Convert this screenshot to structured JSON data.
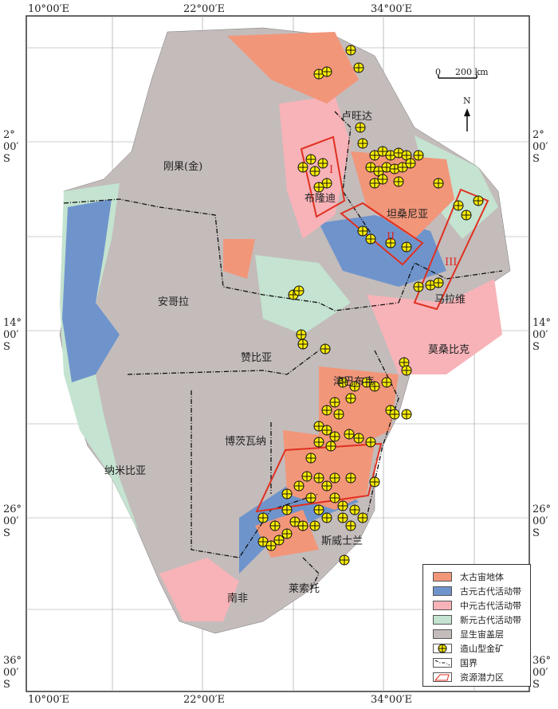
{
  "axes": {
    "top_labels": [
      "10°00′E",
      "22°00′E",
      "34°00′E"
    ],
    "bottom_labels": [
      "10°00′E",
      "22°00′E",
      "34°00′E"
    ],
    "left_labels": [
      [
        "2°",
        "00′",
        "S"
      ],
      [
        "14°",
        "00′",
        "S"
      ],
      [
        "26°",
        "00′",
        "S"
      ],
      [
        "36°",
        "00′",
        "S"
      ]
    ],
    "right_labels": [
      [
        "2°",
        "00′",
        "S"
      ],
      [
        "14°",
        "00′",
        "S"
      ],
      [
        "26°",
        "00′",
        "S"
      ],
      [
        "36°",
        "00′",
        "S"
      ]
    ]
  },
  "scale_bar": {
    "start": "0",
    "end": "200 km"
  },
  "north_arrow": "N",
  "countries": [
    "卢旺达",
    "刚果(金)",
    "布隆迪",
    "坦桑尼亚",
    "安哥拉",
    "赞比亚",
    "马拉维",
    "莫桑比克",
    "津巴布韦",
    "博茨瓦纳",
    "纳米比亚",
    "南非",
    "莱索托",
    "斯威士兰"
  ],
  "zones": [
    "I",
    "II",
    "III"
  ],
  "legend": [
    {
      "label": "太古宙地体",
      "color": "#f2967a"
    },
    {
      "label": "古元古代活动带",
      "color": "#6f94cc"
    },
    {
      "label": "中元古代活动带",
      "color": "#f7b3b8"
    },
    {
      "label": "新元古代活动带",
      "color": "#c4e3d0"
    },
    {
      "label": "显生宙盖层",
      "color": "#c3bcbb"
    },
    {
      "label": "造山型金矿",
      "icon": "gold-deposit-icon"
    },
    {
      "label": "国界",
      "icon": "border-line-icon"
    },
    {
      "label": "资源潜力区",
      "icon": "potential-zone-icon"
    }
  ],
  "colors": {
    "deposit": "#ffee00",
    "zone_outline": "#e03020",
    "frame": "#333333"
  }
}
